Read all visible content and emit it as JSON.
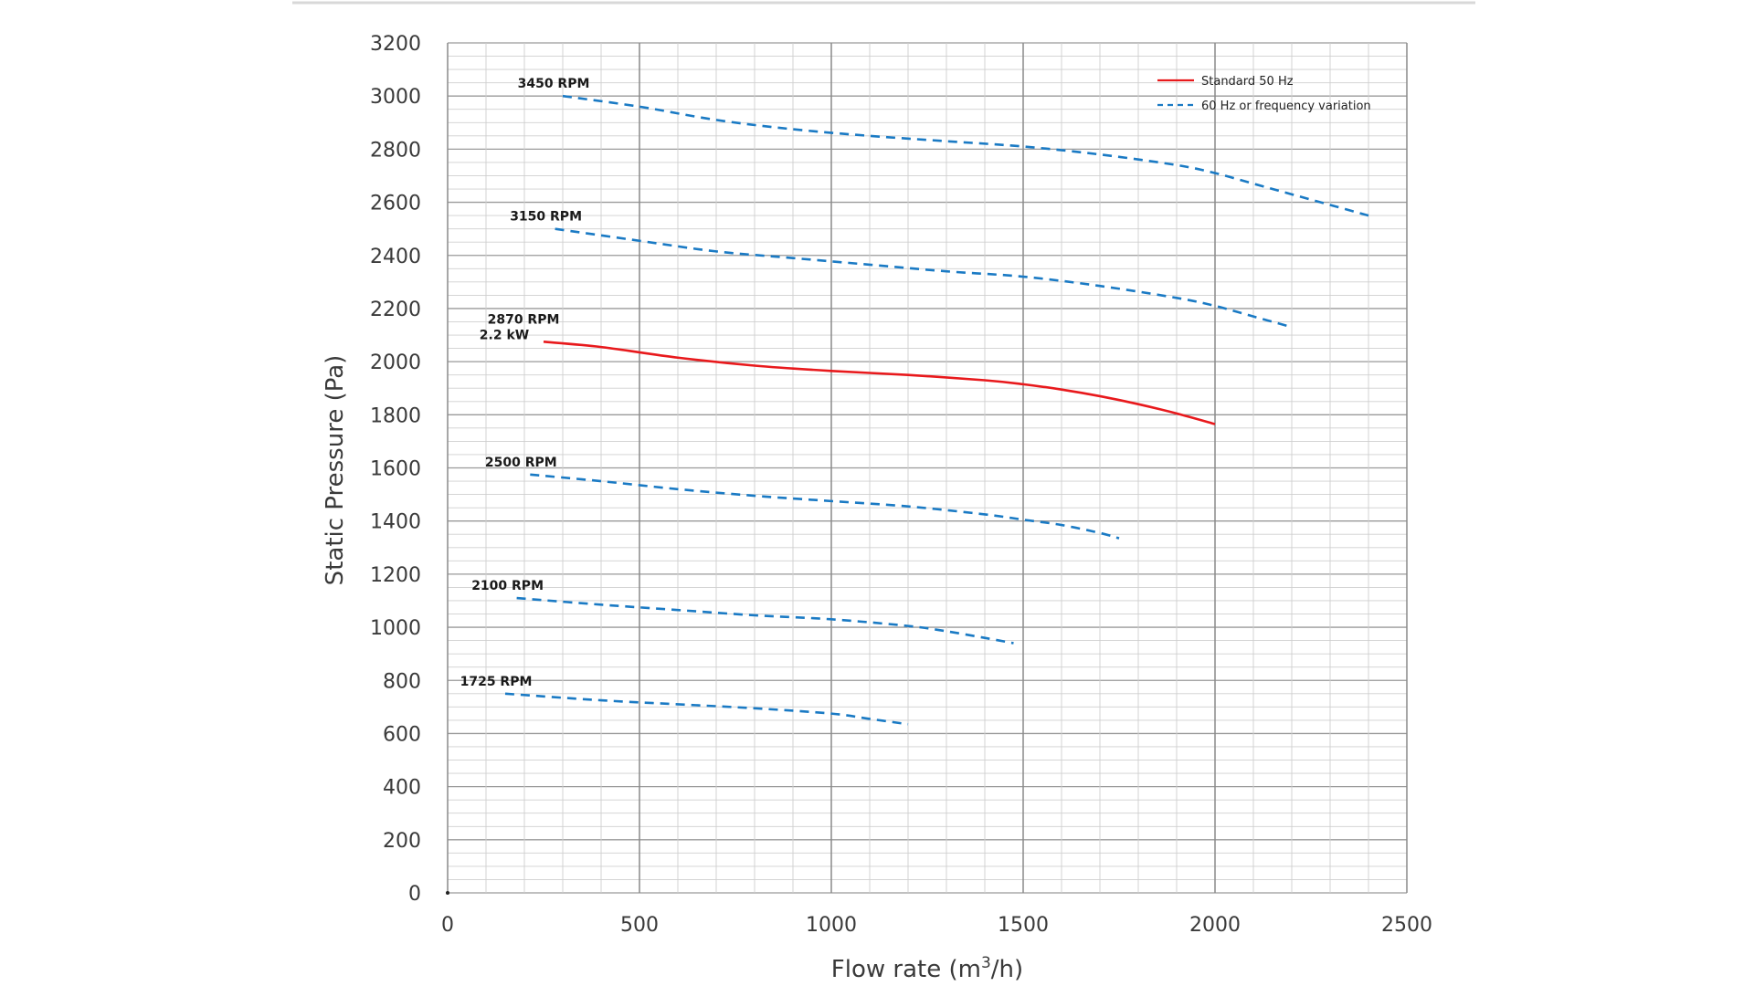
{
  "chart_data": {
    "type": "line",
    "xlabel": "Flow rate (m",
    "xlabel_sup": "3",
    "xlabel_end": "/h)",
    "ylabel": "Static Pressure (Pa)",
    "xlim": [
      0,
      2500
    ],
    "ylim": [
      0,
      3200
    ],
    "x_ticks": [
      "0",
      "500",
      "1000",
      "1500",
      "2000",
      "2500"
    ],
    "y_ticks": [
      "0",
      "200",
      "400",
      "600",
      "800",
      "1000",
      "1200",
      "1400",
      "1600",
      "1800",
      "2000",
      "2200",
      "2400",
      "2600",
      "2800",
      "3000",
      "3200"
    ],
    "grid": true,
    "legend_position": "top-right",
    "legend": [
      {
        "label": "Standard 50 Hz",
        "color": "#e8191c",
        "style": "solid"
      },
      {
        "label": "60 Hz or frequency variation",
        "color": "#1a7ac4",
        "style": "dashed"
      }
    ],
    "series": [
      {
        "label": "3450 RPM",
        "style": "dashed",
        "color": "#1a7ac4",
        "x": [
          300,
          500,
          700,
          900,
          1100,
          1300,
          1500,
          1700,
          1900,
          2000,
          2100,
          2200,
          2300,
          2400
        ],
        "y": [
          3000,
          2960,
          2910,
          2875,
          2850,
          2830,
          2810,
          2780,
          2740,
          2710,
          2670,
          2630,
          2590,
          2550
        ]
      },
      {
        "label": "3150 RPM",
        "style": "dashed",
        "color": "#1a7ac4",
        "x": [
          280,
          500,
          700,
          900,
          1100,
          1300,
          1500,
          1700,
          1900,
          2000,
          2100,
          2200
        ],
        "y": [
          2500,
          2455,
          2415,
          2390,
          2365,
          2340,
          2320,
          2285,
          2240,
          2210,
          2170,
          2130
        ]
      },
      {
        "label": "2870 RPM",
        "label2": "2.2 kW",
        "style": "solid",
        "color": "#e8191c",
        "x": [
          250,
          400,
          600,
          800,
          1000,
          1200,
          1400,
          1500,
          1600,
          1700,
          1800,
          1900,
          2000
        ],
        "y": [
          2075,
          2055,
          2015,
          1985,
          1965,
          1950,
          1930,
          1915,
          1895,
          1870,
          1840,
          1805,
          1765
        ]
      },
      {
        "label": "2500 RPM",
        "style": "dashed",
        "color": "#1a7ac4",
        "x": [
          215,
          400,
          600,
          800,
          1000,
          1200,
          1400,
          1500,
          1600,
          1700,
          1750
        ],
        "y": [
          1575,
          1550,
          1520,
          1495,
          1475,
          1455,
          1425,
          1405,
          1385,
          1355,
          1335
        ]
      },
      {
        "label": "2100 RPM",
        "style": "dashed",
        "color": "#1a7ac4",
        "x": [
          180,
          400,
          600,
          800,
          1000,
          1200,
          1300,
          1400,
          1475
        ],
        "y": [
          1110,
          1085,
          1065,
          1045,
          1030,
          1005,
          985,
          960,
          940
        ]
      },
      {
        "label": "1725 RPM",
        "style": "dashed",
        "color": "#1a7ac4",
        "x": [
          150,
          400,
          600,
          800,
          1000,
          1100,
          1200
        ],
        "y": [
          750,
          725,
          710,
          695,
          675,
          655,
          635
        ]
      }
    ]
  }
}
